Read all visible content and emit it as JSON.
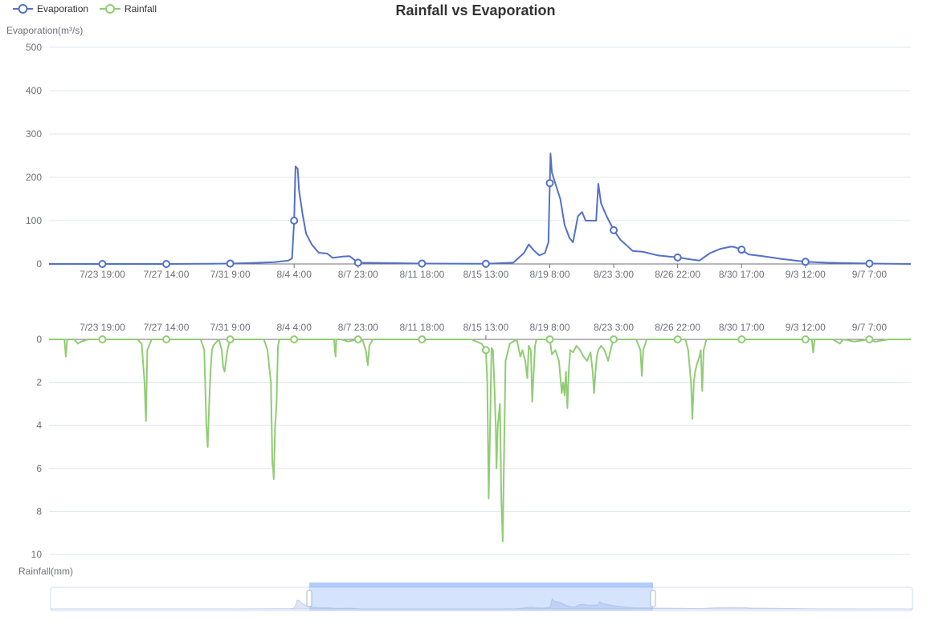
{
  "chart_data": {
    "type": "line",
    "title": "Rainfall vs Evaporation",
    "legend": {
      "placement": "top-left",
      "items": [
        {
          "name": "Evaporation",
          "color": "#5470c6"
        },
        {
          "name": "Rainfall",
          "color": "#91cc75"
        }
      ]
    },
    "x_ticks": [
      "7/23 19:00",
      "7/27 14:00",
      "7/31 9:00",
      "8/4 4:00",
      "8/7 23:00",
      "8/11 18:00",
      "8/15 13:00",
      "8/19 8:00",
      "8/23 3:00",
      "8/26 22:00",
      "8/30 17:00",
      "9/3 12:00",
      "9/7 7:00"
    ],
    "x_tick_positions_hours": [
      10,
      101,
      192,
      283,
      374,
      465,
      556,
      647,
      738,
      829,
      920,
      1011,
      1102
    ],
    "x_range_hours": [
      -66,
      1161
    ],
    "x_unit_note": "hours from 7/23 9:00",
    "evaporation": {
      "name": "Evaporation",
      "axis_label": "Evaporation(m³/s)",
      "ylim": [
        0,
        500
      ],
      "yticks": [
        0,
        100,
        200,
        300,
        400,
        500
      ],
      "color": "#5470c6",
      "points": [
        [
          -66,
          0
        ],
        [
          10,
          0
        ],
        [
          101,
          0
        ],
        [
          160,
          0.5
        ],
        [
          192,
          1
        ],
        [
          220,
          2
        ],
        [
          255,
          4
        ],
        [
          275,
          8
        ],
        [
          280,
          13
        ],
        [
          283,
          100
        ],
        [
          285,
          225
        ],
        [
          288,
          220
        ],
        [
          290,
          170
        ],
        [
          295,
          115
        ],
        [
          300,
          70
        ],
        [
          308,
          45
        ],
        [
          318,
          26
        ],
        [
          330,
          24
        ],
        [
          338,
          14
        ],
        [
          352,
          17
        ],
        [
          362,
          18
        ],
        [
          374,
          3
        ],
        [
          465,
          1
        ],
        [
          556,
          0.5
        ],
        [
          595,
          3
        ],
        [
          610,
          25
        ],
        [
          617,
          45
        ],
        [
          625,
          30
        ],
        [
          632,
          20
        ],
        [
          640,
          25
        ],
        [
          645,
          50
        ],
        [
          648,
          255
        ],
        [
          650,
          211
        ],
        [
          655,
          185
        ],
        [
          662,
          150
        ],
        [
          668,
          90
        ],
        [
          675,
          60
        ],
        [
          680,
          50
        ],
        [
          687,
          110
        ],
        [
          693,
          120
        ],
        [
          698,
          100
        ],
        [
          708,
          100
        ],
        [
          713,
          100
        ],
        [
          716,
          185
        ],
        [
          720,
          140
        ],
        [
          728,
          110
        ],
        [
          738,
          78
        ],
        [
          748,
          55
        ],
        [
          755,
          45
        ],
        [
          765,
          30
        ],
        [
          780,
          28
        ],
        [
          800,
          20
        ],
        [
          829,
          15
        ],
        [
          850,
          10
        ],
        [
          860,
          8
        ],
        [
          875,
          25
        ],
        [
          890,
          35
        ],
        [
          905,
          40
        ],
        [
          910,
          39
        ],
        [
          920,
          33
        ],
        [
          930,
          22
        ],
        [
          950,
          18
        ],
        [
          975,
          12
        ],
        [
          1011,
          5
        ],
        [
          1040,
          3
        ],
        [
          1102,
          1
        ],
        [
          1161,
          0
        ]
      ]
    },
    "rainfall": {
      "name": "Rainfall",
      "axis_label": "Rainfall(mm)",
      "ylim": [
        0,
        10
      ],
      "yticks": [
        0,
        2,
        4,
        6,
        8,
        10
      ],
      "inverted": true,
      "color": "#91cc75",
      "points": [
        [
          -66,
          0
        ],
        [
          -44,
          0
        ],
        [
          -42,
          0.8
        ],
        [
          -40,
          0
        ],
        [
          -30,
          0
        ],
        [
          -25,
          0.2
        ],
        [
          -20,
          0.1
        ],
        [
          -10,
          0
        ],
        [
          0,
          0
        ],
        [
          10,
          0
        ],
        [
          60,
          0
        ],
        [
          66,
          0.2
        ],
        [
          70,
          2
        ],
        [
          72,
          3.8
        ],
        [
          74,
          0.5
        ],
        [
          80,
          0
        ],
        [
          101,
          0
        ],
        [
          150,
          0
        ],
        [
          155,
          0.5
        ],
        [
          158,
          4
        ],
        [
          160,
          5
        ],
        [
          162,
          3
        ],
        [
          164,
          1.5
        ],
        [
          166,
          0.5
        ],
        [
          168,
          0.3
        ],
        [
          170,
          0.2
        ],
        [
          176,
          0
        ],
        [
          180,
          0.5
        ],
        [
          182,
          1.3
        ],
        [
          184,
          1.5
        ],
        [
          186,
          1
        ],
        [
          188,
          0.5
        ],
        [
          192,
          0
        ],
        [
          240,
          0
        ],
        [
          245,
          0.5
        ],
        [
          250,
          2
        ],
        [
          252,
          5.8
        ],
        [
          253,
          6
        ],
        [
          254,
          6.5
        ],
        [
          256,
          4
        ],
        [
          258,
          3
        ],
        [
          260,
          0.3
        ],
        [
          262,
          0
        ],
        [
          283,
          0
        ],
        [
          330,
          0
        ],
        [
          340,
          0
        ],
        [
          341,
          0.5
        ],
        [
          342,
          0.8
        ],
        [
          343,
          0
        ],
        [
          350,
          0
        ],
        [
          360,
          0.1
        ],
        [
          374,
          0
        ],
        [
          380,
          0
        ],
        [
          385,
          0.5
        ],
        [
          388,
          1.2
        ],
        [
          390,
          0.3
        ],
        [
          395,
          0
        ],
        [
          465,
          0
        ],
        [
          535,
          0
        ],
        [
          550,
          0.2
        ],
        [
          556,
          0.5
        ],
        [
          558,
          2
        ],
        [
          560,
          7.4
        ],
        [
          562,
          4
        ],
        [
          564,
          0.4
        ],
        [
          566,
          0.5
        ],
        [
          568,
          2
        ],
        [
          570,
          4
        ],
        [
          571,
          6
        ],
        [
          573,
          4
        ],
        [
          576,
          3
        ],
        [
          578,
          7.5
        ],
        [
          580,
          9.4
        ],
        [
          582,
          5
        ],
        [
          584,
          1
        ],
        [
          590,
          0.2
        ],
        [
          600,
          0
        ],
        [
          605,
          0.8
        ],
        [
          608,
          0.5
        ],
        [
          612,
          1
        ],
        [
          615,
          1.8
        ],
        [
          617,
          0.3
        ],
        [
          620,
          0.5
        ],
        [
          622,
          2.9
        ],
        [
          624,
          1.6
        ],
        [
          626,
          0.3
        ],
        [
          628,
          0
        ],
        [
          647,
          0
        ],
        [
          650,
          0.7
        ],
        [
          655,
          0.5
        ],
        [
          660,
          1
        ],
        [
          664,
          2.5
        ],
        [
          666,
          2
        ],
        [
          668,
          2.6
        ],
        [
          670,
          1.5
        ],
        [
          672,
          3.2
        ],
        [
          674,
          1.5
        ],
        [
          676,
          0.5
        ],
        [
          680,
          0.6
        ],
        [
          685,
          0.3
        ],
        [
          690,
          0.5
        ],
        [
          695,
          0.8
        ],
        [
          700,
          1
        ],
        [
          705,
          0.6
        ],
        [
          708,
          1.5
        ],
        [
          710,
          2.5
        ],
        [
          712,
          1.5
        ],
        [
          714,
          0.8
        ],
        [
          716,
          0.5
        ],
        [
          720,
          0.3
        ],
        [
          725,
          0.5
        ],
        [
          730,
          1
        ],
        [
          735,
          0.3
        ],
        [
          738,
          0
        ],
        [
          760,
          0
        ],
        [
          770,
          0
        ],
        [
          776,
          0.5
        ],
        [
          778,
          1.7
        ],
        [
          780,
          0.5
        ],
        [
          785,
          0
        ],
        [
          829,
          0
        ],
        [
          840,
          0
        ],
        [
          844,
          0.5
        ],
        [
          848,
          2
        ],
        [
          850,
          3.7
        ],
        [
          852,
          2
        ],
        [
          854,
          1.5
        ],
        [
          856,
          1.2
        ],
        [
          858,
          1
        ],
        [
          860,
          0.8
        ],
        [
          862,
          0.5
        ],
        [
          864,
          2.4
        ],
        [
          866,
          0.5
        ],
        [
          870,
          0
        ],
        [
          920,
          0
        ],
        [
          980,
          0
        ],
        [
          1011,
          0
        ],
        [
          1020,
          0
        ],
        [
          1022,
          0.6
        ],
        [
          1024,
          0
        ],
        [
          1050,
          0
        ],
        [
          1060,
          0.2
        ],
        [
          1065,
          0
        ],
        [
          1080,
          0.1
        ],
        [
          1102,
          0
        ],
        [
          1110,
          0.1
        ],
        [
          1130,
          0
        ],
        [
          1161,
          0
        ]
      ]
    }
  }
}
